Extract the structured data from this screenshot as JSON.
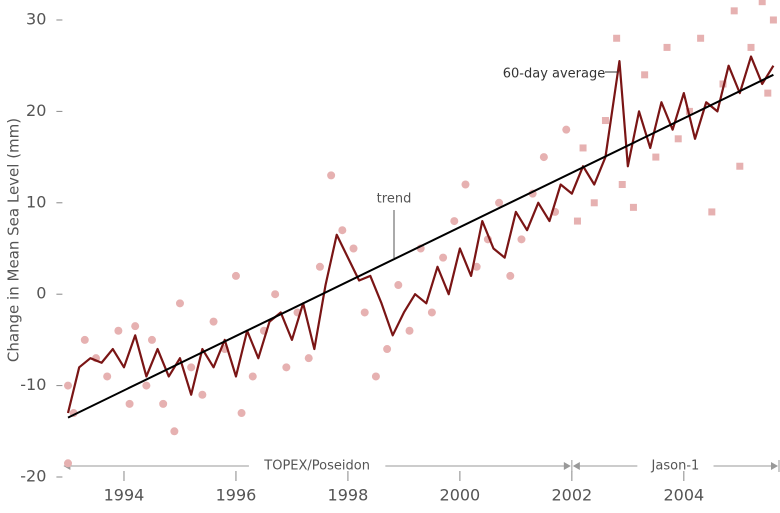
{
  "chart_data": {
    "type": "scatter",
    "y_label": "Change in Mean Sea Level (mm)",
    "xlim": [
      1992.9,
      2005.7
    ],
    "ylim": [
      -20,
      32
    ],
    "xticks": [
      1994,
      1996,
      1998,
      2000,
      2002,
      2004
    ],
    "yticks": [
      -20,
      -10,
      0,
      10,
      20,
      30
    ],
    "series": [
      {
        "name": "TOPEX/Poseidon",
        "marker": "circle",
        "color": "#e6b1b1",
        "x": [
          1993.0,
          1993.0,
          1993.1,
          1993.3,
          1993.5,
          1993.7,
          1993.9,
          1994.1,
          1994.2,
          1994.4,
          1994.5,
          1994.7,
          1994.9,
          1995.0,
          1995.2,
          1995.4,
          1995.6,
          1995.8,
          1996.0,
          1996.1,
          1996.3,
          1996.5,
          1996.7,
          1996.9,
          1997.1,
          1997.3,
          1997.5,
          1997.7,
          1997.9,
          1998.1,
          1998.3,
          1998.5,
          1998.7,
          1998.9,
          1999.1,
          1999.3,
          1999.5,
          1999.7,
          1999.9,
          2000.1,
          2000.3,
          2000.5,
          2000.7,
          2000.9,
          2001.1,
          2001.3,
          2001.5,
          2001.7,
          2001.9
        ],
        "values": [
          -10,
          -18.5,
          -13,
          -5,
          -7,
          -9,
          -4,
          -12,
          -3.5,
          -10,
          -5,
          -12,
          -15,
          -1,
          -8,
          -11,
          -3,
          -6,
          2,
          -13,
          -9,
          -4,
          0,
          -8,
          -2,
          -7,
          3,
          13,
          7,
          5,
          -2,
          -9,
          -6,
          1,
          -4,
          5,
          -2,
          4,
          8,
          12,
          3,
          6,
          10,
          2,
          6,
          11,
          15,
          9,
          18
        ]
      },
      {
        "name": "Jason-1",
        "marker": "square",
        "color": "#e6b1b1",
        "x": [
          2002.1,
          2002.2,
          2002.4,
          2002.6,
          2002.8,
          2002.9,
          2003.1,
          2003.3,
          2003.5,
          2003.7,
          2003.9,
          2004.1,
          2004.3,
          2004.5,
          2004.7,
          2004.9,
          2005.0,
          2005.2,
          2005.4,
          2005.5,
          2005.6
        ],
        "values": [
          8,
          16,
          10,
          19,
          28,
          12,
          9.5,
          24,
          15,
          27,
          17,
          20,
          28,
          9,
          23,
          31,
          14,
          27,
          32,
          22,
          30
        ]
      },
      {
        "name": "60-day average",
        "line": true,
        "color": "#7a1515",
        "x": [
          1993.0,
          1993.2,
          1993.4,
          1993.6,
          1993.8,
          1994.0,
          1994.2,
          1994.4,
          1994.6,
          1994.8,
          1995.0,
          1995.2,
          1995.4,
          1995.6,
          1995.8,
          1996.0,
          1996.2,
          1996.4,
          1996.6,
          1996.8,
          1997.0,
          1997.2,
          1997.4,
          1997.6,
          1997.8,
          1998.0,
          1998.2,
          1998.4,
          1998.6,
          1998.8,
          1999.0,
          1999.2,
          1999.4,
          1999.6,
          1999.8,
          2000.0,
          2000.2,
          2000.4,
          2000.6,
          2000.8,
          2001.0,
          2001.2,
          2001.4,
          2001.6,
          2001.8,
          2002.0,
          2002.2,
          2002.4,
          2002.6,
          2002.85,
          2003.0,
          2003.2,
          2003.4,
          2003.6,
          2003.8,
          2004.0,
          2004.2,
          2004.4,
          2004.6,
          2004.8,
          2005.0,
          2005.2,
          2005.4,
          2005.6
        ],
        "values": [
          -13,
          -8,
          -7,
          -7.5,
          -6,
          -8,
          -4.5,
          -9,
          -6,
          -9,
          -7,
          -11,
          -6,
          -8,
          -5,
          -9,
          -4,
          -7,
          -3,
          -2,
          -5,
          -1,
          -6,
          1,
          6.5,
          4,
          1.5,
          2,
          -1,
          -4.5,
          -2,
          0,
          -1,
          3,
          0,
          5,
          2,
          8,
          5,
          4,
          9,
          7,
          10,
          8,
          12,
          11,
          14,
          12,
          15,
          25.5,
          14,
          20,
          16,
          21,
          18,
          22,
          17,
          21,
          20,
          25,
          22,
          26,
          23,
          25
        ]
      },
      {
        "name": "trend",
        "line": true,
        "color": "#000000",
        "x": [
          1993.0,
          2005.6
        ],
        "values": [
          -13.5,
          24
        ]
      }
    ],
    "missions": [
      {
        "label": "TOPEX/Poseidon",
        "start": 1992.9,
        "end": 2002.0
      },
      {
        "label": "Jason-1",
        "start": 2002.0,
        "end": 2005.7
      }
    ]
  }
}
